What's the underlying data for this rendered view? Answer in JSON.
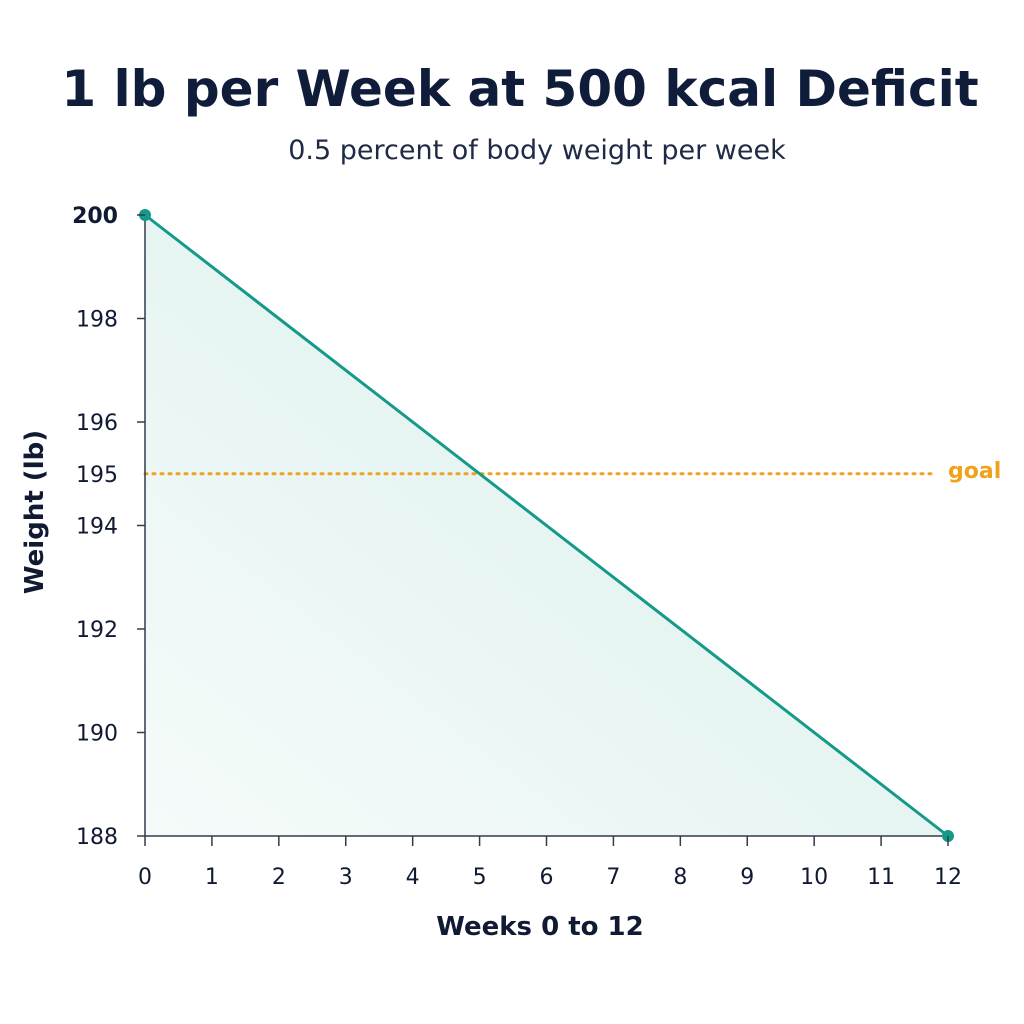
{
  "chart_data": {
    "type": "area",
    "title": "1 lb per Week at 500 kcal Deficit",
    "subtitle": "0.5 percent of body weight per week",
    "xlabel": "Weeks 0 to 12",
    "ylabel": "Weight (lb)",
    "xlim": [
      0,
      12
    ],
    "ylim": [
      188,
      200
    ],
    "x_ticks": [
      0,
      1,
      2,
      3,
      4,
      5,
      6,
      7,
      8,
      9,
      10,
      11,
      12
    ],
    "x_tick_labels": [
      "0",
      "1",
      "2",
      "3",
      "4",
      "5",
      "6",
      "7",
      "8",
      "9",
      "10",
      "11",
      "12"
    ],
    "y_ticks": [
      188,
      190,
      192,
      194,
      195,
      196,
      198,
      200
    ],
    "y_tick_labels": [
      "188",
      "190",
      "192",
      "194",
      "195",
      "196",
      "198",
      "200"
    ],
    "series": [
      {
        "x": [
          0,
          12
        ],
        "y": [
          200,
          188
        ],
        "color": "#159a8a"
      }
    ],
    "reference_line": {
      "y": 195,
      "label": "goal",
      "style": "dotted",
      "color": "#f0a21a"
    },
    "grid": false,
    "fill_color": "#cdeae6"
  }
}
